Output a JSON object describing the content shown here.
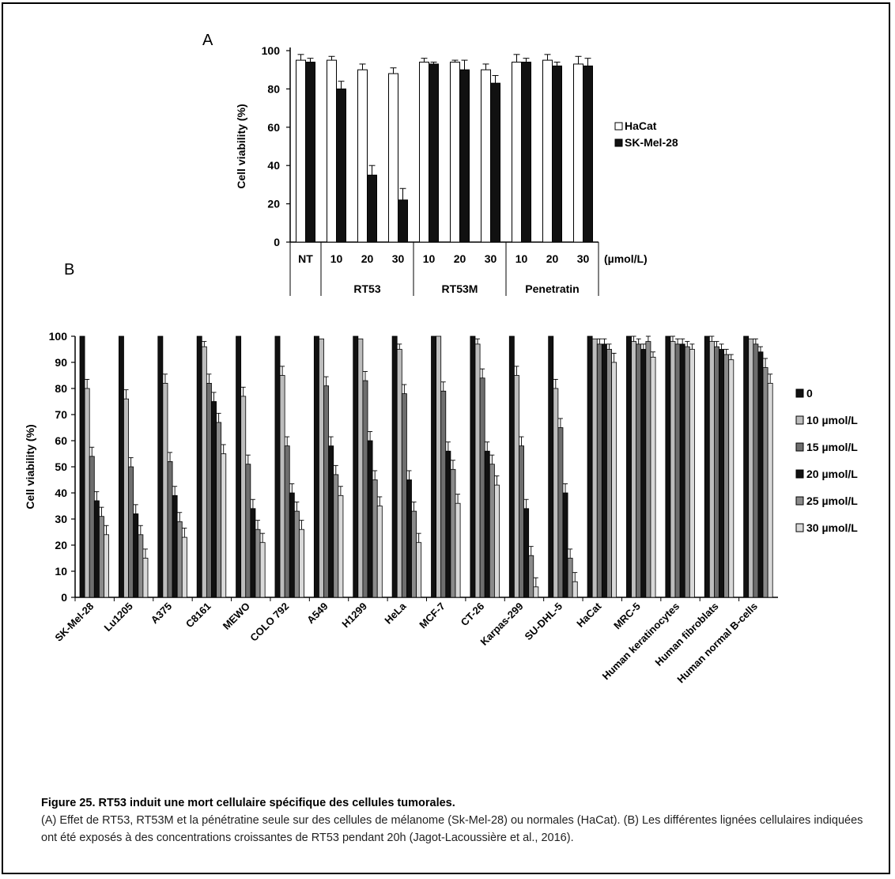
{
  "figure": {
    "panel_a_letter": "A",
    "panel_b_letter": "B",
    "caption_title": "Figure 25. RT53 induit une mort cellulaire spécifique des cellules tumorales.",
    "caption_body": "(A) Effet de RT53, RT53M et la pénétratine seule sur des cellules de mélanome (Sk-Mel-28) ou normales (HaCat). (B) Les différentes lignées cellulaires indiquées ont été exposés à des concentrations croissantes de RT53 pendant 20h (Jagot-Lacoussière et al., 2016)."
  },
  "colors": {
    "black": "#111111",
    "white": "#ffffff",
    "grey_10": "#bdbdbd",
    "grey_15": "#6e6e6e",
    "grey_25": "#8a8a8a",
    "grey_30": "#d9d9d9"
  },
  "chart_data": [
    {
      "type": "bar",
      "ylabel": "Cell viability (%)",
      "ylim": [
        0,
        100
      ],
      "yticks": [
        0,
        20,
        40,
        60,
        80,
        100
      ],
      "categories": [
        "NT",
        "10",
        "20",
        "30",
        "10",
        "20",
        "30",
        "10",
        "20",
        "30"
      ],
      "unit_label": "(µmol/L)",
      "groups": [
        {
          "label": "RT53",
          "categories": [
            "10",
            "20",
            "30"
          ]
        },
        {
          "label": "RT53M",
          "categories": [
            "10",
            "20",
            "30"
          ]
        },
        {
          "label": "Penetratin",
          "categories": [
            "10",
            "20",
            "30"
          ]
        }
      ],
      "series": [
        {
          "name": "HaCat",
          "color": "#ffffff",
          "values": [
            95,
            95,
            90,
            88,
            94,
            94,
            90,
            94,
            95,
            93
          ],
          "errors": [
            3,
            2,
            3,
            3,
            2,
            1,
            3,
            4,
            3,
            4
          ]
        },
        {
          "name": "SK-Mel-28",
          "color": "#111111",
          "values": [
            94,
            80,
            35,
            22,
            93,
            90,
            83,
            94,
            92,
            92
          ],
          "errors": [
            2,
            4,
            5,
            6,
            1,
            5,
            4,
            2,
            2,
            4
          ]
        }
      ],
      "legend_position": "right"
    },
    {
      "type": "bar",
      "ylabel": "Cell viability (%)",
      "ylim": [
        0,
        100
      ],
      "yticks": [
        0,
        10,
        20,
        30,
        40,
        50,
        60,
        70,
        80,
        90,
        100
      ],
      "categories": [
        "SK-Mel-28",
        "Lu1205",
        "A375",
        "C8161",
        "MEWO",
        "COLO 792",
        "A549",
        "H1299",
        "HeLa",
        "MCF-7",
        "CT-26",
        "Karpas-299",
        "SU-DHL-5",
        "HaCat",
        "MRC-5",
        "Human keratinocytes",
        "Human fibroblats",
        "Human normal B-cells"
      ],
      "series": [
        {
          "name": "0",
          "color": "#111111",
          "values": [
            100,
            100,
            100,
            100,
            100,
            100,
            100,
            100,
            100,
            100,
            100,
            100,
            100,
            100,
            100,
            100,
            100,
            100
          ]
        },
        {
          "name": "10 µmol/L",
          "color": "#bdbdbd",
          "values": [
            80,
            76,
            82,
            96,
            77,
            85,
            99,
            99,
            95,
            100,
            97,
            85,
            80,
            99,
            98,
            98,
            98,
            99
          ]
        },
        {
          "name": "15 µmol/L",
          "color": "#6e6e6e",
          "values": [
            54,
            50,
            52,
            82,
            51,
            58,
            81,
            83,
            78,
            79,
            84,
            58,
            65,
            97,
            97,
            97,
            96,
            97
          ]
        },
        {
          "name": "20 µmol/L",
          "color": "#111111",
          "values": [
            37,
            32,
            39,
            75,
            34,
            40,
            58,
            60,
            45,
            56,
            56,
            34,
            40,
            97,
            95,
            97,
            95,
            94
          ]
        },
        {
          "name": "25 µmol/L",
          "color": "#8a8a8a",
          "values": [
            31,
            24,
            29,
            67,
            26,
            33,
            47,
            45,
            33,
            49,
            51,
            16,
            15,
            95,
            98,
            96,
            93,
            88
          ]
        },
        {
          "name": "30 µmol/L",
          "color": "#d9d9d9",
          "values": [
            24,
            15,
            23,
            55,
            21,
            26,
            39,
            35,
            21,
            36,
            43,
            4,
            6,
            90,
            92,
            95,
            91,
            82
          ]
        }
      ],
      "legend_position": "right"
    }
  ]
}
